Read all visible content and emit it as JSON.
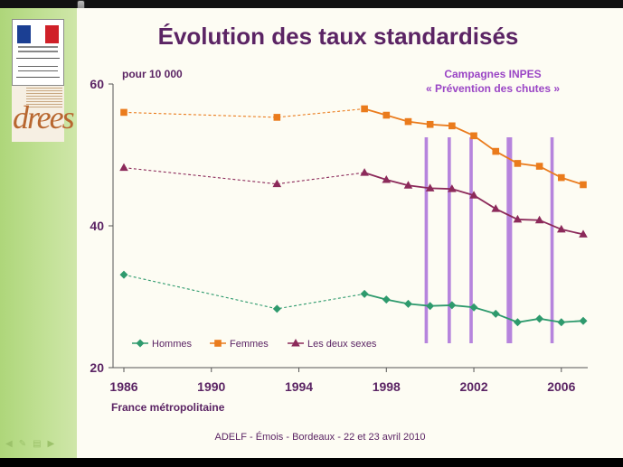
{
  "slide": {
    "title": "Évolution des taux standardisés",
    "unit": "pour 10 000",
    "campaign_line1": "Campagnes INPES",
    "campaign_line2": "« Prévention des chutes »",
    "region": "France métropolitaine",
    "footer": "ADELF - Émois - Bordeaux - 22 et 23 avril 2010"
  },
  "colors": {
    "title": "#5b2464",
    "hommes": "#2e9a6d",
    "femmes": "#ea7b1c",
    "deux": "#8c2a5a",
    "campaign": "#b684dd",
    "axis": "#555555"
  },
  "chart_data": {
    "type": "line",
    "xlim": [
      1986,
      2007
    ],
    "ylim": [
      20,
      60
    ],
    "x_ticks": [
      1986,
      1990,
      1994,
      1998,
      2002,
      2006
    ],
    "x_tick_labels": [
      "1986",
      "1990",
      "1994",
      "1998",
      "2002",
      "2006"
    ],
    "y_ticks": [
      20,
      40,
      60
    ],
    "y_tick_labels": [
      "20",
      "40",
      "60"
    ],
    "legend_position": "bottom-left",
    "series": [
      {
        "name": "Hommes",
        "key": "hommes",
        "marker": "diamond",
        "x": [
          1986,
          1993,
          1997,
          1998,
          1999,
          2000,
          2001,
          2002,
          2003,
          2004,
          2005,
          2006,
          2007
        ],
        "y": [
          33.1,
          28.3,
          30.4,
          29.6,
          29.0,
          28.7,
          28.8,
          28.5,
          27.6,
          26.4,
          26.9,
          26.4,
          26.6
        ],
        "dashed_until": 1997
      },
      {
        "name": "Femmes",
        "key": "femmes",
        "marker": "square",
        "x": [
          1986,
          1993,
          1997,
          1998,
          1999,
          2000,
          2001,
          2002,
          2003,
          2004,
          2005,
          2006,
          2007
        ],
        "y": [
          56.0,
          55.3,
          56.5,
          55.6,
          54.7,
          54.3,
          54.1,
          52.7,
          50.5,
          48.8,
          48.4,
          46.8,
          45.8
        ],
        "dashed_until": 1997
      },
      {
        "name": "Les deux sexes",
        "key": "deux",
        "marker": "triangle",
        "x": [
          1986,
          1993,
          1997,
          1998,
          1999,
          2000,
          2001,
          2002,
          2003,
          2004,
          2005,
          2006,
          2007
        ],
        "y": [
          48.2,
          45.9,
          47.5,
          46.5,
          45.7,
          45.3,
          45.2,
          44.3,
          42.4,
          40.9,
          40.8,
          39.5,
          38.8
        ],
        "dashed_until": 1997
      }
    ],
    "campaign_periods": [
      {
        "x": 1999.75,
        "width": 0.15
      },
      {
        "x": 2000.8,
        "width": 0.15
      },
      {
        "x": 2001.8,
        "width": 0.15
      },
      {
        "x": 2003.5,
        "width": 0.25
      },
      {
        "x": 2005.5,
        "width": 0.15
      }
    ]
  }
}
